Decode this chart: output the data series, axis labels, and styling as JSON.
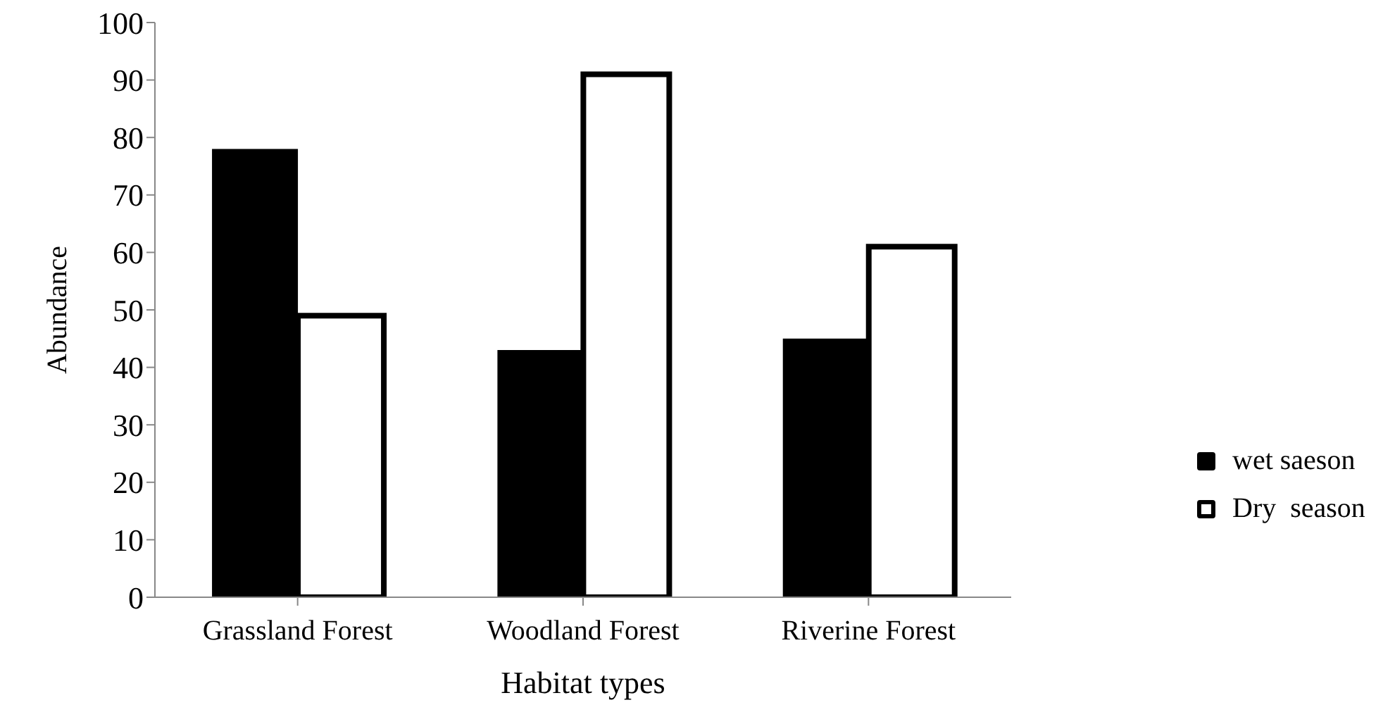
{
  "chart_data": {
    "type": "bar",
    "xlabel": "Habitat types",
    "ylabel": "Abundance",
    "categories": [
      "Grassland Forest",
      "Woodland Forest",
      "Riverine Forest"
    ],
    "series": [
      {
        "name": "wet saeson",
        "color": "#000000",
        "values": [
          78,
          43,
          45
        ]
      },
      {
        "name": "Dry  season",
        "color": "#ffffff",
        "values": [
          49,
          91,
          61
        ]
      }
    ],
    "ylim": [
      0,
      100
    ],
    "yticks": [
      0,
      10,
      20,
      30,
      40,
      50,
      60,
      70,
      80,
      90,
      100
    ],
    "grid": false,
    "legend": "right"
  }
}
